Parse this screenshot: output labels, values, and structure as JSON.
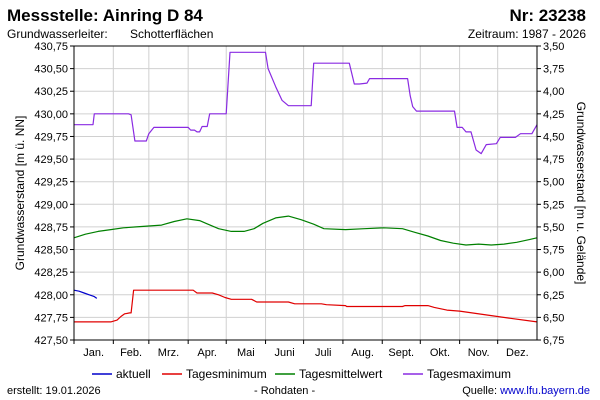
{
  "header": {
    "station": "Messstelle: Ainring D 84",
    "number": "Nr: 23238",
    "aquifer_label": "Grundwasserleiter:",
    "aquifer_value": "Schotterflächen",
    "period": "Zeitraum: 1987 - 2026"
  },
  "footer": {
    "created": "erstellt:  19.01.2026",
    "rawdata": "- Rohdaten -",
    "source_label": "Quelle:",
    "source_link": "www.lfu.bayern.de"
  },
  "chart_data": {
    "type": "line",
    "ylabel": "Grundwasserstand [m ü. NN]",
    "ylabel_right": "Grundwasserstand [m u. Gelände]",
    "ylim": [
      427.5,
      430.75
    ],
    "ylim_right": [
      6.75,
      3.5
    ],
    "yticks": [
      "427,50",
      "427,75",
      "428,00",
      "428,25",
      "428,50",
      "428,75",
      "429,00",
      "429,25",
      "429,50",
      "429,75",
      "430,00",
      "430,25",
      "430,50",
      "430,75"
    ],
    "yticks_right": [
      "6,75",
      "6,50",
      "6,25",
      "6,00",
      "5,75",
      "5,50",
      "5,25",
      "5,00",
      "4,75",
      "4,50",
      "4,25",
      "4,00",
      "3,75",
      "3,50"
    ],
    "xlim": [
      1,
      366
    ],
    "x_unit": "day of year",
    "months": [
      "Jan.",
      "Feb.",
      "Mrz.",
      "Apr.",
      "Mai",
      "Juni",
      "Juli",
      "Aug.",
      "Sept.",
      "Okt.",
      "Nov.",
      "Dez."
    ],
    "grid": true,
    "legend_position": "bottom",
    "series": [
      {
        "name": "aktuell",
        "color": "#0000cc",
        "points": [
          [
            1,
            428.05
          ],
          [
            5,
            428.04
          ],
          [
            9,
            428.02
          ],
          [
            13,
            428.0
          ],
          [
            17,
            427.98
          ],
          [
            19,
            427.96
          ]
        ]
      },
      {
        "name": "Tagesminimum",
        "color": "#e00000",
        "points": [
          [
            1,
            427.7
          ],
          [
            25,
            427.7
          ],
          [
            30,
            427.7
          ],
          [
            35,
            427.72
          ],
          [
            38,
            427.76
          ],
          [
            41,
            427.79
          ],
          [
            45,
            427.8
          ],
          [
            46,
            427.8
          ],
          [
            48,
            428.05
          ],
          [
            52,
            428.05
          ],
          [
            70,
            428.05
          ],
          [
            95,
            428.05
          ],
          [
            98,
            428.02
          ],
          [
            110,
            428.02
          ],
          [
            115,
            428.0
          ],
          [
            120,
            427.97
          ],
          [
            125,
            427.95
          ],
          [
            141,
            427.95
          ],
          [
            145,
            427.92
          ],
          [
            170,
            427.92
          ],
          [
            175,
            427.9
          ],
          [
            196,
            427.9
          ],
          [
            200,
            427.89
          ],
          [
            215,
            427.88
          ],
          [
            216,
            427.87
          ],
          [
            260,
            427.87
          ],
          [
            262,
            427.88
          ],
          [
            280,
            427.88
          ],
          [
            285,
            427.86
          ],
          [
            295,
            427.83
          ],
          [
            305,
            427.82
          ],
          [
            330,
            427.77
          ],
          [
            345,
            427.74
          ],
          [
            366,
            427.7
          ]
        ]
      },
      {
        "name": "Tagesmittelwert",
        "color": "#008000",
        "points": [
          [
            1,
            428.63
          ],
          [
            10,
            428.67
          ],
          [
            20,
            428.7
          ],
          [
            30,
            428.72
          ],
          [
            40,
            428.74
          ],
          [
            50,
            428.75
          ],
          [
            60,
            428.76
          ],
          [
            70,
            428.77
          ],
          [
            80,
            428.81
          ],
          [
            90,
            428.84
          ],
          [
            100,
            428.82
          ],
          [
            105,
            428.79
          ],
          [
            115,
            428.73
          ],
          [
            125,
            428.7
          ],
          [
            135,
            428.7
          ],
          [
            143,
            428.73
          ],
          [
            150,
            428.79
          ],
          [
            160,
            428.85
          ],
          [
            170,
            428.87
          ],
          [
            180,
            428.83
          ],
          [
            190,
            428.78
          ],
          [
            198,
            428.73
          ],
          [
            215,
            428.72
          ],
          [
            230,
            428.73
          ],
          [
            245,
            428.74
          ],
          [
            260,
            428.73
          ],
          [
            270,
            428.69
          ],
          [
            280,
            428.65
          ],
          [
            290,
            428.6
          ],
          [
            300,
            428.57
          ],
          [
            310,
            428.55
          ],
          [
            320,
            428.56
          ],
          [
            330,
            428.55
          ],
          [
            340,
            428.56
          ],
          [
            350,
            428.58
          ],
          [
            360,
            428.61
          ],
          [
            366,
            428.63
          ]
        ]
      },
      {
        "name": "Tagesmaximum",
        "color": "#8a2be2",
        "points": [
          [
            1,
            429.88
          ],
          [
            14,
            429.88
          ],
          [
            16,
            429.88
          ],
          [
            17,
            430.0
          ],
          [
            30,
            430.0
          ],
          [
            44,
            430.0
          ],
          [
            46,
            429.99
          ],
          [
            49,
            429.7
          ],
          [
            58,
            429.7
          ],
          [
            60,
            429.78
          ],
          [
            64,
            429.85
          ],
          [
            68,
            429.85
          ],
          [
            91,
            429.85
          ],
          [
            93,
            429.82
          ],
          [
            96,
            429.82
          ],
          [
            98,
            429.8
          ],
          [
            100,
            429.8
          ],
          [
            102,
            429.86
          ],
          [
            106,
            429.86
          ],
          [
            108,
            430.0
          ],
          [
            121,
            430.0
          ],
          [
            124,
            430.68
          ],
          [
            140,
            430.68
          ],
          [
            152,
            430.68
          ],
          [
            154,
            430.5
          ],
          [
            160,
            430.3
          ],
          [
            165,
            430.15
          ],
          [
            170,
            430.09
          ],
          [
            188,
            430.09
          ],
          [
            190,
            430.56
          ],
          [
            199,
            430.56
          ],
          [
            218,
            430.56
          ],
          [
            222,
            430.33
          ],
          [
            226,
            430.33
          ],
          [
            232,
            430.34
          ],
          [
            234,
            430.39
          ],
          [
            248,
            430.39
          ],
          [
            264,
            430.39
          ],
          [
            266,
            430.2
          ],
          [
            268,
            430.08
          ],
          [
            271,
            430.03
          ],
          [
            301,
            430.03
          ],
          [
            303,
            429.85
          ],
          [
            307,
            429.85
          ],
          [
            310,
            429.8
          ],
          [
            314,
            429.8
          ],
          [
            318,
            429.6
          ],
          [
            322,
            429.56
          ],
          [
            326,
            429.66
          ],
          [
            334,
            429.67
          ],
          [
            337,
            429.74
          ],
          [
            349,
            429.74
          ],
          [
            353,
            429.78
          ],
          [
            362,
            429.78
          ],
          [
            366,
            429.88
          ]
        ]
      }
    ]
  }
}
